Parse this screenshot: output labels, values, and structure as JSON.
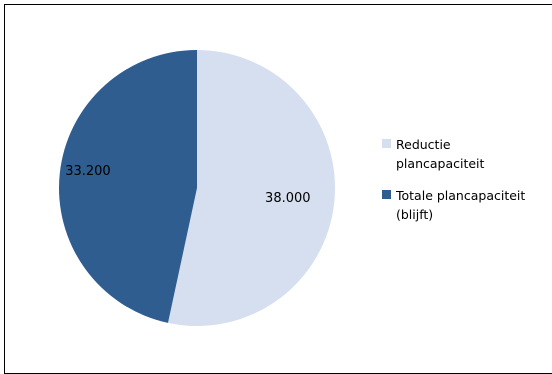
{
  "chart_data": {
    "type": "pie",
    "title": "",
    "slices": [
      {
        "label_lines": [
          "Reductie",
          "plancapaciteit"
        ],
        "value": 38000,
        "value_label": "38.000",
        "color": "#D6DFEF"
      },
      {
        "label_lines": [
          "Totale plancapaciteit",
          "(blijft)"
        ],
        "value": 33200,
        "value_label": "33.200",
        "color": "#2F5D8F"
      }
    ],
    "start_angle_deg": 0,
    "direction": "clockwise",
    "legend_position": "right"
  }
}
